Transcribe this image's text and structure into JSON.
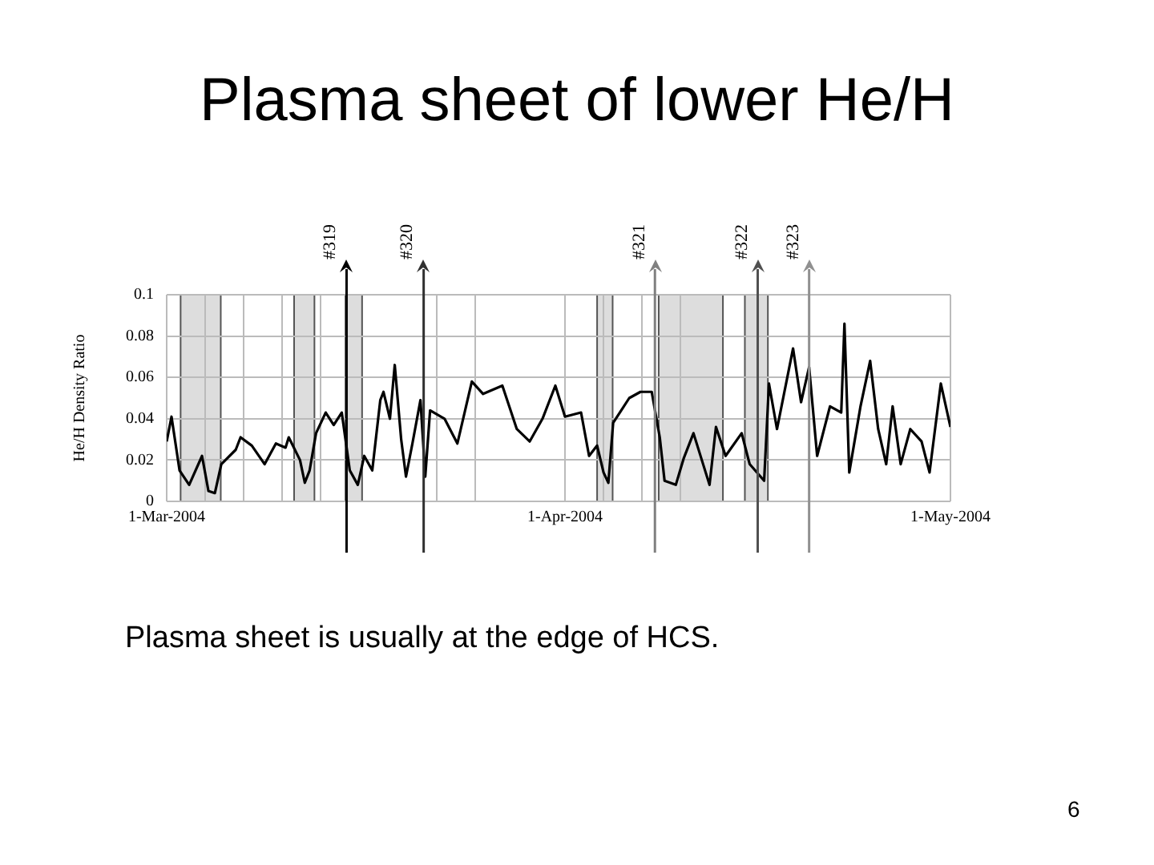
{
  "chart_data": {
    "type": "line",
    "title": "Plasma sheet of lower He/H",
    "ylabel": "He/H Density Ratio",
    "x": [
      "2004-03-01",
      "2004-03-01T09:00",
      "2004-03-02",
      "2004-03-02T18:00",
      "2004-03-03T18:00",
      "2004-03-04T06:00",
      "2004-03-04T18:00",
      "2004-03-05T06:00",
      "2004-03-06T09:00",
      "2004-03-06T18:00",
      "2004-03-07T15:00",
      "2004-03-08T15:00",
      "2004-03-09T12:00",
      "2004-03-10T06:00",
      "2004-03-10T12:00",
      "2004-03-11T09:00",
      "2004-03-11T18:00",
      "2004-03-12T03:00",
      "2004-03-12T15:00",
      "2004-03-13T09:00",
      "2004-03-14",
      "2004-03-14T15:00",
      "2004-03-15T06:00",
      "2004-03-15T21:00",
      "2004-03-16T09:00",
      "2004-03-17",
      "2004-03-17T15:00",
      "2004-03-17T21:00",
      "2004-03-18T09:00",
      "2004-03-18T18:00",
      "2004-03-19T06:00",
      "2004-03-19T15:00",
      "2004-03-20T03:00",
      "2004-03-20T18:00",
      "2004-03-21T03:00",
      "2004-03-21T12:00",
      "2004-03-22T15:00",
      "2004-03-23T15:00",
      "2004-03-24T18:00",
      "2004-03-25T15:00",
      "2004-03-27T03:00",
      "2004-03-28T06:00",
      "2004-03-29T06:00",
      "2004-03-30T06:00",
      "2004-03-31T06:00",
      "2004-04-01",
      "2004-04-02T06:00",
      "2004-04-02T21:00",
      "2004-04-03T12:00",
      "2004-04-04",
      "2004-04-04T09:00",
      "2004-04-04T18:00",
      "2004-04-06",
      "2004-04-06T21:00",
      "2004-04-07T18:00",
      "2004-04-08T09:00",
      "2004-04-08T18:00",
      "2004-04-09T15:00",
      "2004-04-10T06:00",
      "2004-04-11",
      "2004-04-12T06:00",
      "2004-04-12T18:00",
      "2004-04-13T12:00",
      "2004-04-14T18:00",
      "2004-04-15T09:00",
      "2004-04-16T12:00",
      "2004-04-16T21:00",
      "2004-04-17T12:00",
      "2004-04-18T18:00",
      "2004-04-19T09:00",
      "2004-04-20",
      "2004-04-20T15:00",
      "2004-04-21T15:00",
      "2004-04-22T12:00",
      "2004-04-22T18:00",
      "2004-04-23T03:00",
      "2004-04-24",
      "2004-04-24T18:00",
      "2004-04-25T09:00",
      "2004-04-26",
      "2004-04-26T12:00",
      "2004-04-27T03:00",
      "2004-04-27T21:00",
      "2004-04-28T18:00",
      "2004-04-29T09:00",
      "2004-04-30T06:00",
      "2004-05-01"
    ],
    "series": [
      {
        "color": "#000000",
        "values": [
          0.029,
          0.041,
          0.015,
          0.008,
          0.022,
          0.005,
          0.004,
          0.018,
          0.025,
          0.031,
          0.027,
          0.018,
          0.028,
          0.026,
          0.031,
          0.02,
          0.009,
          0.015,
          0.033,
          0.043,
          0.037,
          0.043,
          0.015,
          0.008,
          0.022,
          0.015,
          0.049,
          0.053,
          0.04,
          0.066,
          0.03,
          0.012,
          0.028,
          0.049,
          0.012,
          0.044,
          0.04,
          0.028,
          0.058,
          0.052,
          0.056,
          0.035,
          0.029,
          0.04,
          0.056,
          0.041,
          0.043,
          0.022,
          0.027,
          0.014,
          0.009,
          0.038,
          0.05,
          0.053,
          0.053,
          0.031,
          0.01,
          0.008,
          0.021,
          0.033,
          0.008,
          0.036,
          0.022,
          0.033,
          0.018,
          0.01,
          0.057,
          0.035,
          0.074,
          0.048,
          0.065,
          0.022,
          0.046,
          0.043,
          0.086,
          0.014,
          0.046,
          0.068,
          0.035,
          0.018,
          0.046,
          0.018,
          0.035,
          0.029,
          0.014,
          0.057,
          0.036
        ]
      }
    ],
    "xlim": [
      "2004-03-01",
      "2004-05-01"
    ],
    "xticks": [
      {
        "value": "2004-03-01",
        "label": "1-Mar-2004"
      },
      {
        "value": "2004-03-04",
        "label": null
      },
      {
        "value": "2004-03-07",
        "label": null
      },
      {
        "value": "2004-03-10",
        "label": null
      },
      {
        "value": "2004-03-13",
        "label": null
      },
      {
        "value": "2004-03-22",
        "label": null
      },
      {
        "value": "2004-03-25",
        "label": null
      },
      {
        "value": "2004-04-01",
        "label": "1-Apr-2004"
      },
      {
        "value": "2004-04-04",
        "label": null
      },
      {
        "value": "2004-04-07",
        "label": null
      },
      {
        "value": "2004-04-10",
        "label": null
      },
      {
        "value": "2004-05-01",
        "label": "1-May-2004"
      }
    ],
    "ylim": [
      0,
      0.1
    ],
    "yticks": [
      0,
      0.02,
      0.04,
      0.06,
      0.08,
      0.1
    ],
    "grid": true,
    "ref_lines": [
      {
        "axis": "x",
        "value": "2004-03-15",
        "label": "#319",
        "color": "#000000"
      },
      {
        "axis": "x",
        "value": "2004-03-21",
        "label": "#320",
        "color": "#303030"
      },
      {
        "axis": "x",
        "value": "2004-04-08",
        "label": "#321",
        "color": "#808080"
      },
      {
        "axis": "x",
        "value": "2004-04-16",
        "label": "#322",
        "color": "#505050"
      },
      {
        "axis": "x",
        "value": "2004-04-20",
        "label": "#323",
        "color": "#909090"
      }
    ],
    "bands": [
      {
        "axis": "x",
        "from": "2004-03-02T02:00",
        "to": "2004-03-05T05:00",
        "color": "#dddddd"
      },
      {
        "axis": "x",
        "from": "2004-03-10T22:00",
        "to": "2004-03-12T12:00",
        "color": "#dddddd"
      },
      {
        "axis": "x",
        "from": "2004-03-14T22:00",
        "to": "2004-03-16T05:00",
        "color": "#dddddd"
      },
      {
        "axis": "x",
        "from": "2004-04-03T12:00",
        "to": "2004-04-04T17:00",
        "color": "#dddddd"
      },
      {
        "axis": "x",
        "from": "2004-04-08T07:00",
        "to": "2004-04-13T07:00",
        "color": "#dddddd"
      },
      {
        "axis": "x",
        "from": "2004-04-15",
        "to": "2004-04-16T19:00",
        "color": "#dddddd"
      }
    ],
    "annotations": [
      "Plasma sheet is usually at the edge of HCS.",
      "6"
    ]
  }
}
